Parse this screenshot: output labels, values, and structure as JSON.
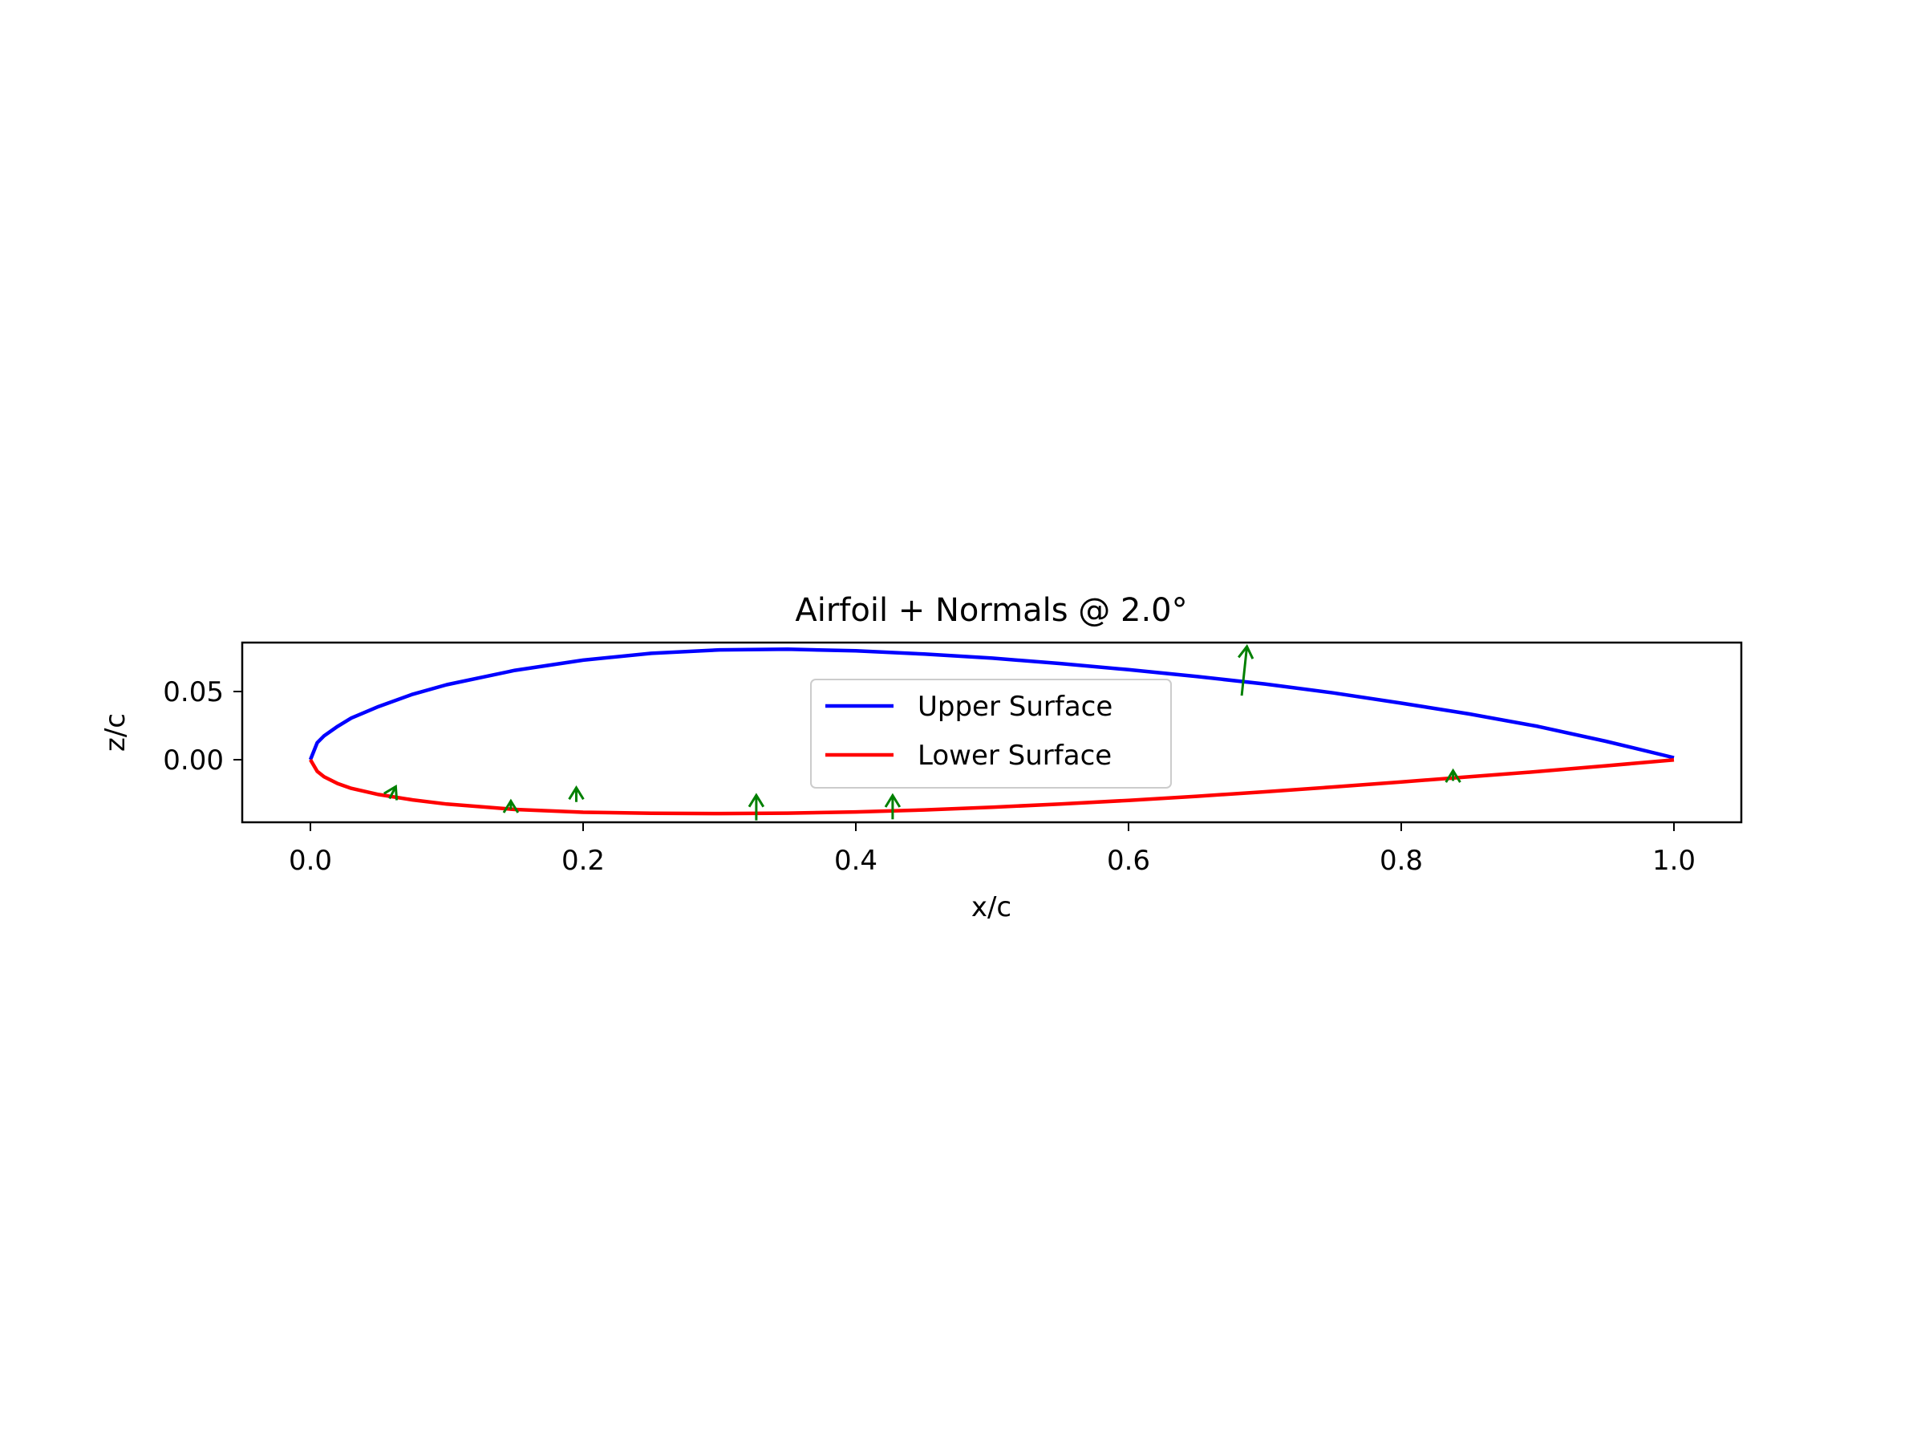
{
  "chart_data": {
    "type": "line",
    "title": "Airfoil + Normals @ 2.0°",
    "xlabel": "x/c",
    "ylabel": "z/c",
    "xlim": [
      -0.05,
      1.05
    ],
    "ylim": [
      -0.045,
      0.087
    ],
    "x_ticks": [
      0.0,
      0.2,
      0.4,
      0.6,
      0.8,
      1.0
    ],
    "x_tick_labels": [
      "0.0",
      "0.2",
      "0.4",
      "0.6",
      "0.8",
      "1.0"
    ],
    "y_ticks": [
      0.05,
      0.0
    ],
    "y_tick_labels": [
      "0.05",
      "0.00"
    ],
    "grid": false,
    "legend": {
      "placement": "center",
      "entries": [
        {
          "label": "Upper Surface",
          "color": "#0000ff"
        },
        {
          "label": "Lower Surface",
          "color": "#ff0000"
        }
      ]
    },
    "series": [
      {
        "name": "Upper Surface",
        "color": "#0000ff",
        "x": [
          0.0,
          0.005,
          0.01,
          0.02,
          0.03,
          0.05,
          0.075,
          0.1,
          0.15,
          0.2,
          0.25,
          0.3,
          0.35,
          0.4,
          0.45,
          0.5,
          0.55,
          0.6,
          0.65,
          0.7,
          0.75,
          0.8,
          0.85,
          0.9,
          0.95,
          1.0
        ],
        "y": [
          0.0,
          0.0125,
          0.0175,
          0.0245,
          0.0305,
          0.039,
          0.048,
          0.055,
          0.0655,
          0.073,
          0.078,
          0.0805,
          0.081,
          0.0798,
          0.0775,
          0.0745,
          0.0705,
          0.066,
          0.061,
          0.0555,
          0.049,
          0.0415,
          0.0335,
          0.0245,
          0.0135,
          0.0015
        ]
      },
      {
        "name": "Lower Surface",
        "color": "#ff0000",
        "x": [
          0.0,
          0.005,
          0.01,
          0.02,
          0.03,
          0.05,
          0.075,
          0.1,
          0.15,
          0.2,
          0.25,
          0.3,
          0.35,
          0.4,
          0.45,
          0.5,
          0.55,
          0.6,
          0.65,
          0.7,
          0.75,
          0.8,
          0.85,
          0.9,
          0.95,
          1.0
        ],
        "y": [
          0.0,
          -0.0085,
          -0.0125,
          -0.0175,
          -0.021,
          -0.0255,
          -0.0295,
          -0.0325,
          -0.0365,
          -0.0385,
          -0.0393,
          -0.0395,
          -0.0392,
          -0.0383,
          -0.0368,
          -0.0348,
          -0.0325,
          -0.0298,
          -0.0268,
          -0.0235,
          -0.02,
          -0.0163,
          -0.0125,
          -0.0087,
          -0.0045,
          -0.0002
        ]
      }
    ],
    "normals": {
      "color": "#008000",
      "vectors": [
        {
          "x": 0.058,
          "y": -0.0285,
          "dx": 0.0046,
          "dy": 0.0088
        },
        {
          "x": 0.147,
          "y": -0.0365,
          "dx": 0.0,
          "dy": 0.0062
        },
        {
          "x": 0.195,
          "y": -0.031,
          "dx": 0.0,
          "dy": 0.0105
        },
        {
          "x": 0.327,
          "y": -0.0445,
          "dx": 0.0,
          "dy": 0.0185
        },
        {
          "x": 0.427,
          "y": -0.0437,
          "dx": 0.0,
          "dy": 0.0175
        },
        {
          "x": 0.683,
          "y": 0.047,
          "dx": 0.0038,
          "dy": 0.036
        },
        {
          "x": 0.838,
          "y": -0.0155,
          "dx": 0.0,
          "dy": 0.0075
        }
      ]
    }
  }
}
